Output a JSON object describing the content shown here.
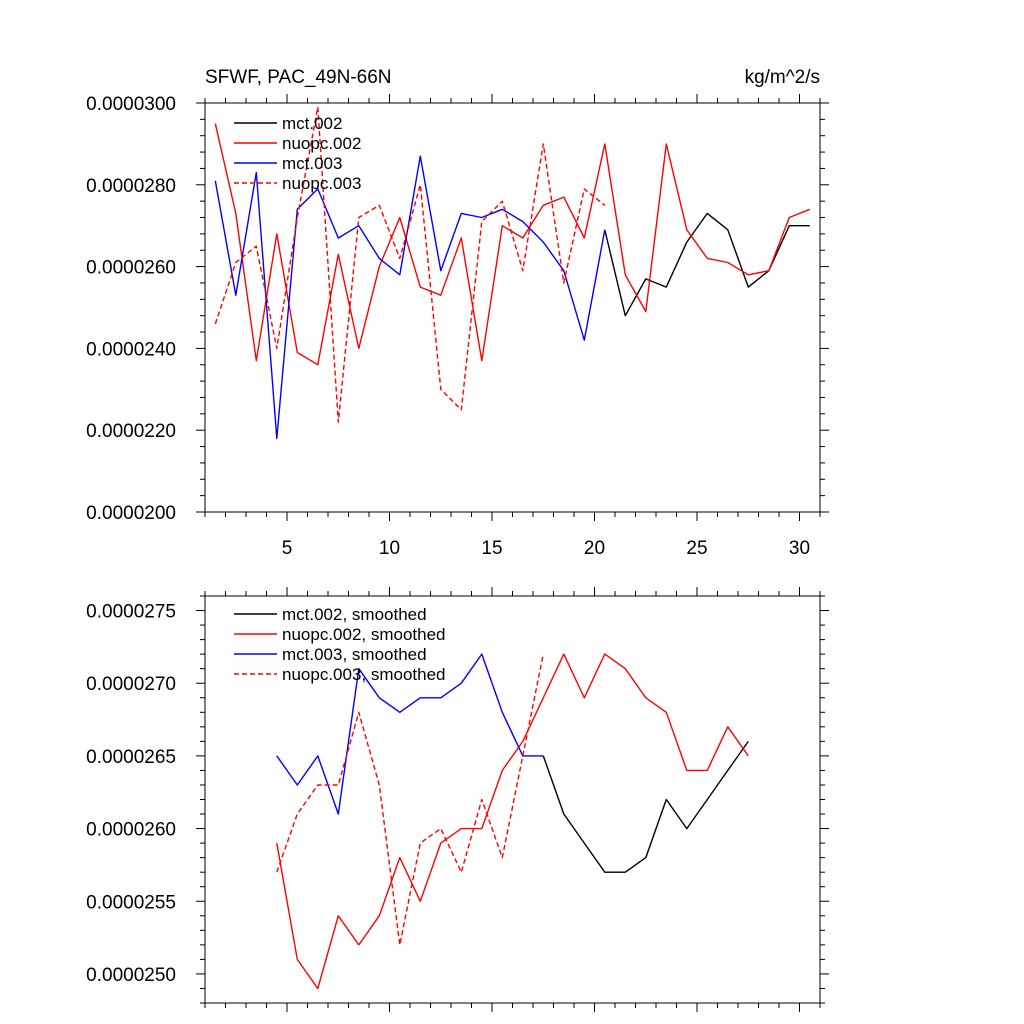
{
  "chart_data": [
    {
      "type": "line",
      "title": "SFWF, PAC_49N-66N",
      "units": "kg/m^2/s",
      "xlim": [
        1,
        31
      ],
      "ylim": [
        2e-05,
        3e-05
      ],
      "x_ticks": [
        5,
        10,
        15,
        20,
        25,
        30
      ],
      "x_tick_labels": [
        "5",
        "10",
        "15",
        "20",
        "25",
        "30"
      ],
      "y_ticks": [
        2e-05,
        2.2e-05,
        2.4e-05,
        2.6e-05,
        2.8e-05,
        3e-05
      ],
      "y_tick_labels": [
        "0.0000200",
        "0.0000220",
        "0.0000240",
        "0.0000260",
        "0.0000280",
        "0.0000300"
      ],
      "legend_position": "top-left",
      "series": [
        {
          "name": "mct.002",
          "color": "#000000",
          "dash": "solid",
          "x": [
            20.5,
            21.5,
            22.5,
            23.5,
            24.5,
            25.5,
            26.5,
            27.5,
            28.5,
            29.5,
            30.5
          ],
          "values": [
            2.69e-05,
            2.48e-05,
            2.57e-05,
            2.55e-05,
            2.66e-05,
            2.73e-05,
            2.69e-05,
            2.55e-05,
            2.59e-05,
            2.7e-05,
            2.7e-05
          ]
        },
        {
          "name": "nuopc.002",
          "color": "#ff0000",
          "dash": "solid",
          "x": [
            1.5,
            2.5,
            3.5,
            4.5,
            5.5,
            6.5,
            7.5,
            8.5,
            9.5,
            10.5,
            11.5,
            12.5,
            13.5,
            14.5,
            15.5,
            16.5,
            17.5,
            18.5,
            19.5,
            20.5,
            21.5,
            22.5,
            23.5,
            24.5,
            25.5,
            26.5,
            27.5,
            28.5,
            29.5,
            30.5
          ],
          "values": [
            2.95e-05,
            2.73e-05,
            2.37e-05,
            2.68e-05,
            2.39e-05,
            2.36e-05,
            2.63e-05,
            2.4e-05,
            2.6e-05,
            2.72e-05,
            2.55e-05,
            2.53e-05,
            2.67e-05,
            2.37e-05,
            2.7e-05,
            2.67e-05,
            2.75e-05,
            2.77e-05,
            2.67e-05,
            2.9e-05,
            2.58e-05,
            2.49e-05,
            2.9e-05,
            2.69e-05,
            2.62e-05,
            2.61e-05,
            2.58e-05,
            2.59e-05,
            2.72e-05,
            2.74e-05
          ]
        },
        {
          "name": "mct.003",
          "color": "#0000ff",
          "dash": "solid",
          "x": [
            1.5,
            2.5,
            3.5,
            4.5,
            5.5,
            6.5,
            7.5,
            8.5,
            9.5,
            10.5,
            11.5,
            12.5,
            13.5,
            14.5,
            15.5,
            16.5,
            17.5,
            18.5,
            19.5,
            20.5
          ],
          "values": [
            2.81e-05,
            2.53e-05,
            2.83e-05,
            2.18e-05,
            2.74e-05,
            2.79e-05,
            2.67e-05,
            2.7e-05,
            2.62e-05,
            2.58e-05,
            2.87e-05,
            2.59e-05,
            2.73e-05,
            2.72e-05,
            2.74e-05,
            2.71e-05,
            2.66e-05,
            2.59e-05,
            2.42e-05,
            2.69e-05
          ]
        },
        {
          "name": "nuopc.003",
          "color": "#ff0000",
          "dash": "dashed",
          "x": [
            1.5,
            2.5,
            3.5,
            4.5,
            5.5,
            6.5,
            7.5,
            8.5,
            9.5,
            10.5,
            11.5,
            12.5,
            13.5,
            14.5,
            15.5,
            16.5,
            17.5,
            18.5,
            19.5,
            20.5
          ],
          "values": [
            2.46e-05,
            2.61e-05,
            2.65e-05,
            2.4e-05,
            2.72e-05,
            2.99e-05,
            2.22e-05,
            2.72e-05,
            2.75e-05,
            2.62e-05,
            2.8e-05,
            2.3e-05,
            2.25e-05,
            2.71e-05,
            2.76e-05,
            2.59e-05,
            2.9e-05,
            2.56e-05,
            2.79e-05,
            2.75e-05
          ]
        }
      ]
    },
    {
      "type": "line",
      "xlim": [
        1,
        31
      ],
      "ylim": [
        2.48e-05,
        2.76e-05
      ],
      "x_ticks": [
        5,
        10,
        15,
        20,
        25,
        30
      ],
      "y_ticks": [
        2.5e-05,
        2.55e-05,
        2.6e-05,
        2.65e-05,
        2.7e-05,
        2.75e-05
      ],
      "y_tick_labels": [
        "0.0000250",
        "0.0000255",
        "0.0000260",
        "0.0000265",
        "0.0000270",
        "0.0000275"
      ],
      "legend_position": "top-left",
      "series": [
        {
          "name": "mct.002, smoothed",
          "color": "#000000",
          "dash": "solid",
          "x": [
            17.5,
            18.5,
            19.5,
            20.5,
            21.5,
            22.5,
            23.5,
            24.5,
            25.5,
            26.5,
            27.5
          ],
          "values": [
            2.65e-05,
            2.61e-05,
            2.59e-05,
            2.57e-05,
            2.57e-05,
            2.58e-05,
            2.62e-05,
            2.6e-05,
            2.62e-05,
            2.64e-05,
            2.66e-05
          ]
        },
        {
          "name": "nuopc.002, smoothed",
          "color": "#ff0000",
          "dash": "solid",
          "x": [
            4.5,
            5.5,
            6.5,
            7.5,
            8.5,
            9.5,
            10.5,
            11.5,
            12.5,
            13.5,
            14.5,
            15.5,
            16.5,
            17.5,
            18.5,
            19.5,
            20.5,
            21.5,
            22.5,
            23.5,
            24.5,
            25.5,
            26.5,
            27.5
          ],
          "values": [
            2.59e-05,
            2.51e-05,
            2.49e-05,
            2.54e-05,
            2.52e-05,
            2.54e-05,
            2.58e-05,
            2.55e-05,
            2.59e-05,
            2.6e-05,
            2.6e-05,
            2.64e-05,
            2.66e-05,
            2.69e-05,
            2.72e-05,
            2.69e-05,
            2.72e-05,
            2.71e-05,
            2.69e-05,
            2.68e-05,
            2.64e-05,
            2.64e-05,
            2.67e-05,
            2.65e-05
          ]
        },
        {
          "name": "mct.003, smoothed",
          "color": "#0000ff",
          "dash": "solid",
          "x": [
            4.5,
            5.5,
            6.5,
            7.5,
            8.5,
            9.5,
            10.5,
            11.5,
            12.5,
            13.5,
            14.5,
            15.5,
            16.5,
            17.5
          ],
          "values": [
            2.65e-05,
            2.63e-05,
            2.65e-05,
            2.61e-05,
            2.71e-05,
            2.69e-05,
            2.68e-05,
            2.69e-05,
            2.69e-05,
            2.7e-05,
            2.72e-05,
            2.68e-05,
            2.65e-05,
            2.65e-05
          ]
        },
        {
          "name": "nuopc.003, smoothed",
          "color": "#ff0000",
          "dash": "dashed",
          "x": [
            4.5,
            5.5,
            6.5,
            7.5,
            8.5,
            9.5,
            10.5,
            11.5,
            12.5,
            13.5,
            14.5,
            15.5,
            16.5,
            17.5
          ],
          "values": [
            2.57e-05,
            2.61e-05,
            2.63e-05,
            2.63e-05,
            2.68e-05,
            2.63e-05,
            2.52e-05,
            2.59e-05,
            2.6e-05,
            2.57e-05,
            2.62e-05,
            2.58e-05,
            2.65e-05,
            2.72e-05
          ]
        }
      ]
    }
  ]
}
